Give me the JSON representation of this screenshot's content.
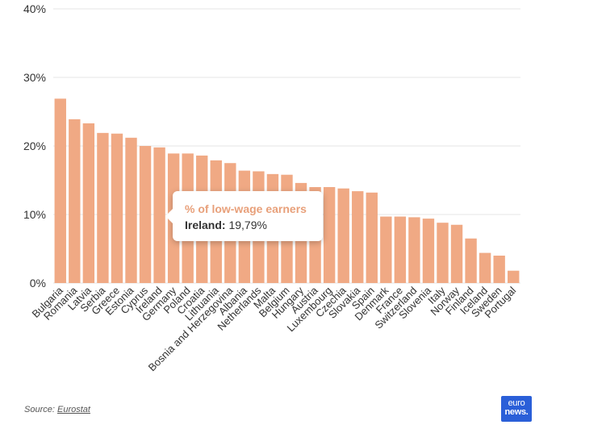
{
  "colors": {
    "bar": "#f0a984",
    "grid": "#e6e6e6",
    "tooltip_title": "#e8a07a",
    "logo_bg": "#2a5fd8"
  },
  "chart_data": {
    "type": "bar",
    "title": "",
    "xlabel": "",
    "ylabel": "",
    "ylim": [
      0,
      40
    ],
    "yticks": [
      "0%",
      "10%",
      "20%",
      "30%",
      "40%"
    ],
    "categories": [
      "Bulgaria",
      "Romania",
      "Latvia",
      "Serbia",
      "Greece",
      "Estonia",
      "Cyprus",
      "Ireland",
      "Germany",
      "Poland",
      "Croatia",
      "Lithuania",
      "Bosnia and Herzegovina",
      "Albania",
      "Netherlands",
      "Malta",
      "Belgium",
      "Hungary",
      "Austria",
      "Luxembourg",
      "Czechia",
      "Slovakia",
      "Spain",
      "Denmark",
      "France",
      "Switzerland",
      "Slovenia",
      "Italy",
      "Norway",
      "Finland",
      "Iceland",
      "Sweden",
      "Portugal"
    ],
    "series": [
      {
        "name": "% of low-wage earners",
        "values": [
          26.9,
          23.9,
          23.3,
          21.9,
          21.8,
          21.2,
          20.0,
          19.79,
          18.9,
          18.9,
          18.6,
          17.9,
          17.5,
          16.4,
          16.3,
          15.9,
          15.8,
          14.6,
          14.0,
          14.0,
          13.8,
          13.4,
          13.2,
          9.7,
          9.7,
          9.6,
          9.4,
          8.8,
          8.5,
          6.5,
          4.4,
          4.0,
          1.8
        ]
      }
    ]
  },
  "tooltip": {
    "title": "% of low-wage earners",
    "label": "Ireland:",
    "value": "19,79%"
  },
  "footer": {
    "source_prefix": "Source:",
    "source_link": "Eurostat"
  },
  "logo": {
    "line1": "euro",
    "line2": "news."
  }
}
